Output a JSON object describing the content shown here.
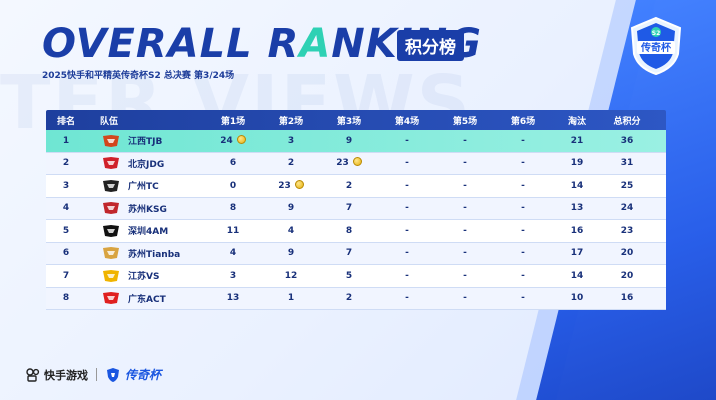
{
  "ghost_text": "TER VIEWS",
  "header": {
    "title_pre": "OVERALL R",
    "title_accent": "A",
    "title_post": "NKING",
    "cn_tag": "积分榜",
    "subtitle": "2025快手和平精英传奇杯S2 总决赛 第3/24场"
  },
  "badge": {
    "label": "传奇杯",
    "top": "S2"
  },
  "table": {
    "columns": [
      "排名",
      "队伍",
      "第1场",
      "第2场",
      "第3场",
      "第4场",
      "第5场",
      "第6场",
      "淘汰",
      "总积分"
    ],
    "rows": [
      {
        "rank": "1",
        "team": "江西TJB",
        "g1": "24",
        "g2": "3",
        "g3": "9",
        "g4": "-",
        "g5": "-",
        "g6": "-",
        "kills": "21",
        "total": "36",
        "coin": 1,
        "logo_color": "#d2461c"
      },
      {
        "rank": "2",
        "team": "北京JDG",
        "g1": "6",
        "g2": "2",
        "g3": "23",
        "g4": "-",
        "g5": "-",
        "g6": "-",
        "kills": "19",
        "total": "31",
        "coin": 3,
        "logo_color": "#d0202a"
      },
      {
        "rank": "3",
        "team": "广州TC",
        "g1": "0",
        "g2": "23",
        "g3": "2",
        "g4": "-",
        "g5": "-",
        "g6": "-",
        "kills": "14",
        "total": "25",
        "coin": 2,
        "logo_color": "#222222"
      },
      {
        "rank": "4",
        "team": "苏州KSG",
        "g1": "8",
        "g2": "9",
        "g3": "7",
        "g4": "-",
        "g5": "-",
        "g6": "-",
        "kills": "13",
        "total": "24",
        "coin": 0,
        "logo_color": "#c1272d"
      },
      {
        "rank": "5",
        "team": "深圳4AM",
        "g1": "11",
        "g2": "4",
        "g3": "8",
        "g4": "-",
        "g5": "-",
        "g6": "-",
        "kills": "16",
        "total": "23",
        "coin": 0,
        "logo_color": "#111111"
      },
      {
        "rank": "6",
        "team": "苏州Tianba",
        "g1": "4",
        "g2": "9",
        "g3": "7",
        "g4": "-",
        "g5": "-",
        "g6": "-",
        "kills": "17",
        "total": "20",
        "coin": 0,
        "logo_color": "#d9a441"
      },
      {
        "rank": "7",
        "team": "江苏VS",
        "g1": "3",
        "g2": "12",
        "g3": "5",
        "g4": "-",
        "g5": "-",
        "g6": "-",
        "kills": "14",
        "total": "20",
        "coin": 0,
        "logo_color": "#f0b400"
      },
      {
        "rank": "8",
        "team": "广东ACT",
        "g1": "13",
        "g2": "1",
        "g3": "2",
        "g4": "-",
        "g5": "-",
        "g6": "-",
        "kills": "10",
        "total": "16",
        "coin": 0,
        "logo_color": "#e02020"
      }
    ]
  },
  "footer": {
    "brand": "快手游戏",
    "cup": "传奇杯"
  },
  "colors": {
    "primary": "#1a3ea8",
    "accent": "#2ed1b4",
    "header_row": "#2d57c4",
    "first_row": "#7ee9d8"
  }
}
